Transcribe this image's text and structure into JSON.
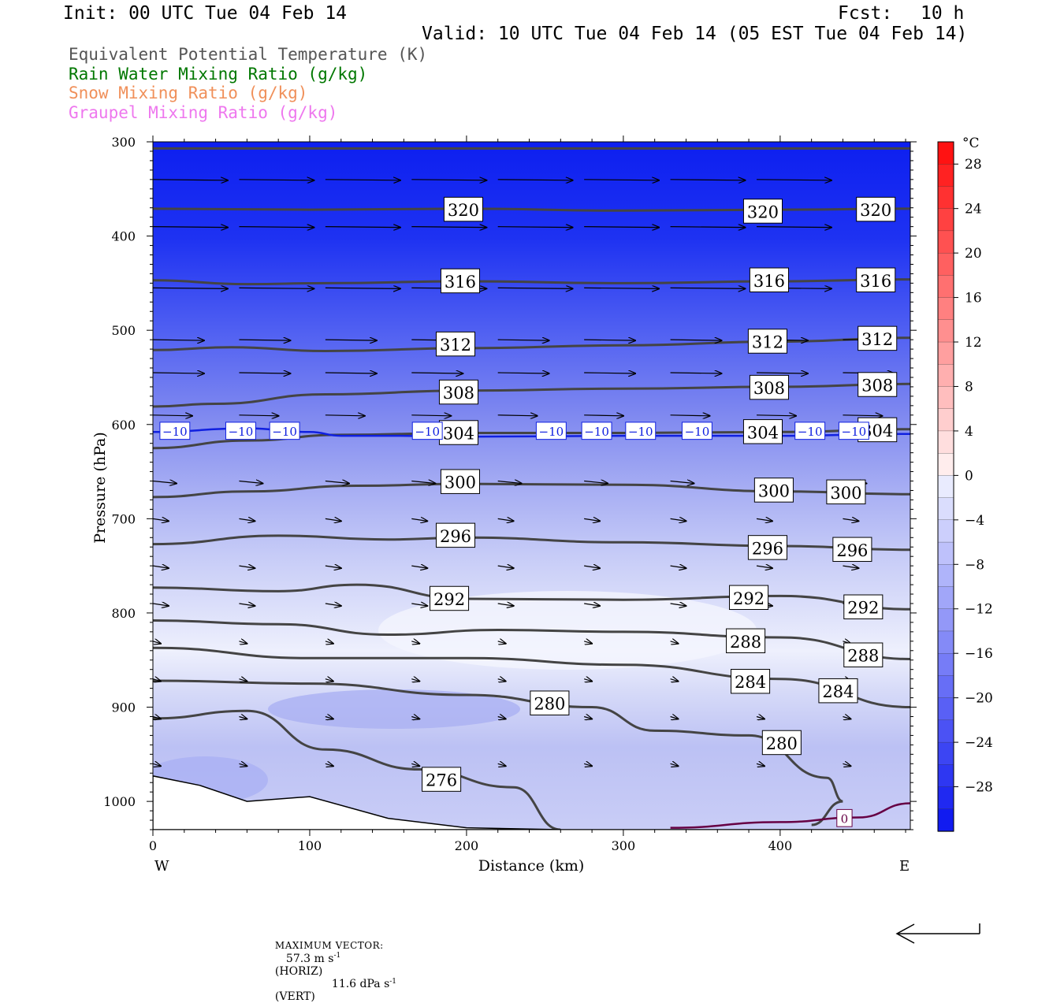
{
  "header": {
    "init": "Init: 00 UTC Tue 04 Feb 14",
    "fcst_label": "Fcst:",
    "fcst_value": "10 h",
    "valid": "Valid: 10 UTC Tue 04 Feb 14 (05 EST Tue 04 Feb 14)"
  },
  "legend": [
    {
      "label": "Equivalent Potential Temperature (K)",
      "color": "#555555"
    },
    {
      "label": "Rain Water Mixing Ratio (g/kg)",
      "color": "#007700"
    },
    {
      "label": "Snow Mixing Ratio (g/kg)",
      "color": "#f0905a"
    },
    {
      "label": "Graupel Mixing Ratio (g/kg)",
      "color": "#ee77ee"
    }
  ],
  "footer": {
    "max_vector_label": "MAXIMUM VECTOR:",
    "horiz_value": "57.3 m s",
    "horiz_exp": "-1",
    "horiz_tag": "(HORIZ)",
    "vert_value": "11.6 dPa s",
    "vert_exp": "-1",
    "vert_tag": "(VERT)"
  },
  "chart_data": {
    "type": "cross-section",
    "xlabel": "Distance (km)",
    "ylabel": "Pressure (hPa)",
    "xlim": [
      0,
      483
    ],
    "ylim": [
      1030,
      300
    ],
    "x_ticks": [
      0,
      100,
      200,
      300,
      400
    ],
    "y_ticks": [
      300,
      400,
      500,
      600,
      700,
      800,
      900,
      1000
    ],
    "x_end_labels": {
      "left": "W",
      "right": "E"
    },
    "colorbar": {
      "unit": "°C",
      "tick_labels": [
        "28",
        "24",
        "20",
        "16",
        "12",
        "8",
        "4",
        "0",
        "−4",
        "−8",
        "−12",
        "−16",
        "−20",
        "−24",
        "−28"
      ],
      "levels": [
        30,
        28,
        26,
        24,
        22,
        20,
        18,
        16,
        14,
        12,
        10,
        8,
        6,
        4,
        2,
        0,
        -2,
        -4,
        -6,
        -8,
        -10,
        -12,
        -14,
        -16,
        -18,
        -20,
        -22,
        -24,
        -26,
        -28,
        -30,
        -32
      ]
    },
    "theta_e_contours": [
      {
        "label": "320",
        "points": [
          [
            0,
            371
          ],
          [
            100,
            372
          ],
          [
            200,
            371
          ],
          [
            300,
            373
          ],
          [
            400,
            372
          ],
          [
            483,
            371
          ]
        ],
        "label_at": [
          [
            198,
            372
          ],
          [
            389,
            374
          ],
          [
            461,
            372
          ]
        ]
      },
      {
        "label": "316",
        "points": [
          [
            0,
            447
          ],
          [
            60,
            451
          ],
          [
            110,
            450
          ],
          [
            200,
            448
          ],
          [
            300,
            450
          ],
          [
            400,
            448
          ],
          [
            483,
            446
          ]
        ],
        "label_at": [
          [
            196,
            448
          ],
          [
            393,
            447
          ],
          [
            461,
            447
          ]
        ]
      },
      {
        "label": "312",
        "points": [
          [
            0,
            521
          ],
          [
            50,
            518
          ],
          [
            110,
            522
          ],
          [
            200,
            519
          ],
          [
            300,
            516
          ],
          [
            400,
            512
          ],
          [
            483,
            508
          ]
        ],
        "label_at": [
          [
            193,
            515
          ],
          [
            392,
            512
          ],
          [
            462,
            509
          ]
        ]
      },
      {
        "label": "308",
        "points": [
          [
            0,
            581
          ],
          [
            40,
            578
          ],
          [
            110,
            568
          ],
          [
            200,
            564
          ],
          [
            300,
            562
          ],
          [
            400,
            560
          ],
          [
            483,
            557
          ]
        ],
        "label_at": [
          [
            195,
            566
          ],
          [
            393,
            561
          ],
          [
            462,
            558
          ]
        ]
      },
      {
        "label": "304",
        "points": [
          [
            0,
            625
          ],
          [
            60,
            617
          ],
          [
            120,
            611
          ],
          [
            200,
            609
          ],
          [
            300,
            609
          ],
          [
            400,
            608
          ],
          [
            483,
            605
          ]
        ],
        "label_at": [
          [
            195,
            609
          ],
          [
            389,
            608
          ],
          [
            462,
            606
          ]
        ]
      },
      {
        "label": "300",
        "points": [
          [
            0,
            677
          ],
          [
            60,
            671
          ],
          [
            130,
            665
          ],
          [
            200,
            663
          ],
          [
            300,
            664
          ],
          [
            400,
            671
          ],
          [
            483,
            674
          ]
        ],
        "label_at": [
          [
            196,
            661
          ],
          [
            396,
            670
          ],
          [
            442,
            672
          ]
        ]
      },
      {
        "label": "296",
        "points": [
          [
            0,
            727
          ],
          [
            80,
            718
          ],
          [
            150,
            722
          ],
          [
            200,
            720
          ],
          [
            300,
            725
          ],
          [
            400,
            729
          ],
          [
            483,
            733
          ]
        ],
        "label_at": [
          [
            193,
            718
          ],
          [
            392,
            731
          ],
          [
            446,
            733
          ]
        ]
      },
      {
        "label": "292",
        "points": [
          [
            0,
            773
          ],
          [
            80,
            777
          ],
          [
            130,
            770
          ],
          [
            200,
            785
          ],
          [
            300,
            786
          ],
          [
            400,
            782
          ],
          [
            483,
            796
          ]
        ],
        "label_at": [
          [
            189,
            785
          ],
          [
            380,
            784
          ],
          [
            453,
            794
          ]
        ]
      },
      {
        "label": "288",
        "points": [
          [
            0,
            808
          ],
          [
            80,
            812
          ],
          [
            150,
            823
          ],
          [
            220,
            818
          ],
          [
            300,
            820
          ],
          [
            400,
            826
          ],
          [
            483,
            849
          ]
        ],
        "label_at": [
          [
            378,
            830
          ],
          [
            453,
            845
          ]
        ]
      },
      {
        "label": "284",
        "points": [
          [
            0,
            837
          ],
          [
            100,
            848
          ],
          [
            200,
            848
          ],
          [
            300,
            855
          ],
          [
            400,
            870
          ],
          [
            483,
            900
          ]
        ],
        "label_at": [
          [
            381,
            873
          ],
          [
            437,
            883
          ]
        ]
      },
      {
        "label": "280",
        "points": [
          [
            0,
            872
          ],
          [
            100,
            875
          ],
          [
            200,
            887
          ],
          [
            280,
            900
          ],
          [
            320,
            925
          ],
          [
            380,
            930
          ],
          [
            430,
            975
          ],
          [
            440,
            1000
          ],
          [
            420,
            1025
          ]
        ],
        "label_at": [
          [
            253,
            896
          ],
          [
            401,
            938
          ]
        ]
      },
      {
        "label": "276",
        "points": [
          [
            0,
            912
          ],
          [
            60,
            904
          ],
          [
            110,
            945
          ],
          [
            170,
            966
          ],
          [
            230,
            985
          ],
          [
            260,
            1030
          ]
        ],
        "label_at": [
          [
            184,
            977
          ]
        ]
      }
    ],
    "isotherms": [
      {
        "value": -10,
        "label": "−10",
        "points": [
          [
            0,
            608
          ],
          [
            60,
            604
          ],
          [
            100,
            608
          ],
          [
            120,
            612
          ],
          [
            150,
            612
          ],
          [
            200,
            613
          ],
          [
            300,
            612
          ],
          [
            400,
            612
          ],
          [
            483,
            610
          ]
        ]
      },
      {
        "value": 0,
        "label": "0",
        "points": [
          [
            330,
            1028
          ],
          [
            400,
            1022
          ],
          [
            450,
            1017
          ],
          [
            483,
            1002
          ]
        ]
      }
    ],
    "terrain_profile": [
      [
        0,
        973
      ],
      [
        30,
        983
      ],
      [
        60,
        1000
      ],
      [
        100,
        995
      ],
      [
        150,
        1018
      ],
      [
        200,
        1028
      ],
      [
        260,
        1030
      ],
      [
        483,
        1030
      ]
    ],
    "wind_vectors_note": "westerly flow, strongest aloft"
  }
}
